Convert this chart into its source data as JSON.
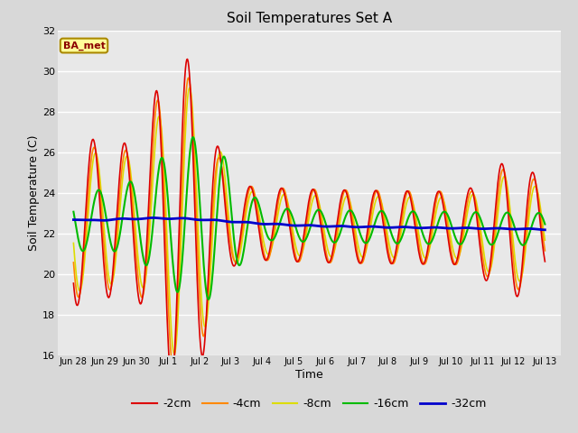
{
  "title": "Soil Temperatures Set A",
  "xlabel": "Time",
  "ylabel": "Soil Temperature (C)",
  "ylim": [
    16,
    32
  ],
  "annotation": "BA_met",
  "background_color": "#e8e8e8",
  "grid_color": "#ffffff",
  "series_colors": {
    "-2cm": "#dd0000",
    "-4cm": "#ff8800",
    "-8cm": "#dddd00",
    "-16cm": "#00bb00",
    "-32cm": "#0000cc"
  },
  "series_linewidths": {
    "-2cm": 1.2,
    "-4cm": 1.2,
    "-8cm": 1.2,
    "-16cm": 1.5,
    "-32cm": 2.0
  },
  "xtick_labels": [
    "Jun 28",
    "Jun 29",
    "Jun 30",
    "Jul 1",
    "Jul 2",
    "Jul 3",
    "Jul 4",
    "Jul 5",
    "Jul 6",
    "Jul 7",
    "Jul 8",
    "Jul 9",
    "Jul 10",
    "Jul 11",
    "Jul 12",
    "Jul 13"
  ],
  "ytick_values": [
    16,
    18,
    20,
    22,
    24,
    26,
    28,
    30,
    32
  ],
  "figsize": [
    6.4,
    4.8
  ],
  "dpi": 100
}
